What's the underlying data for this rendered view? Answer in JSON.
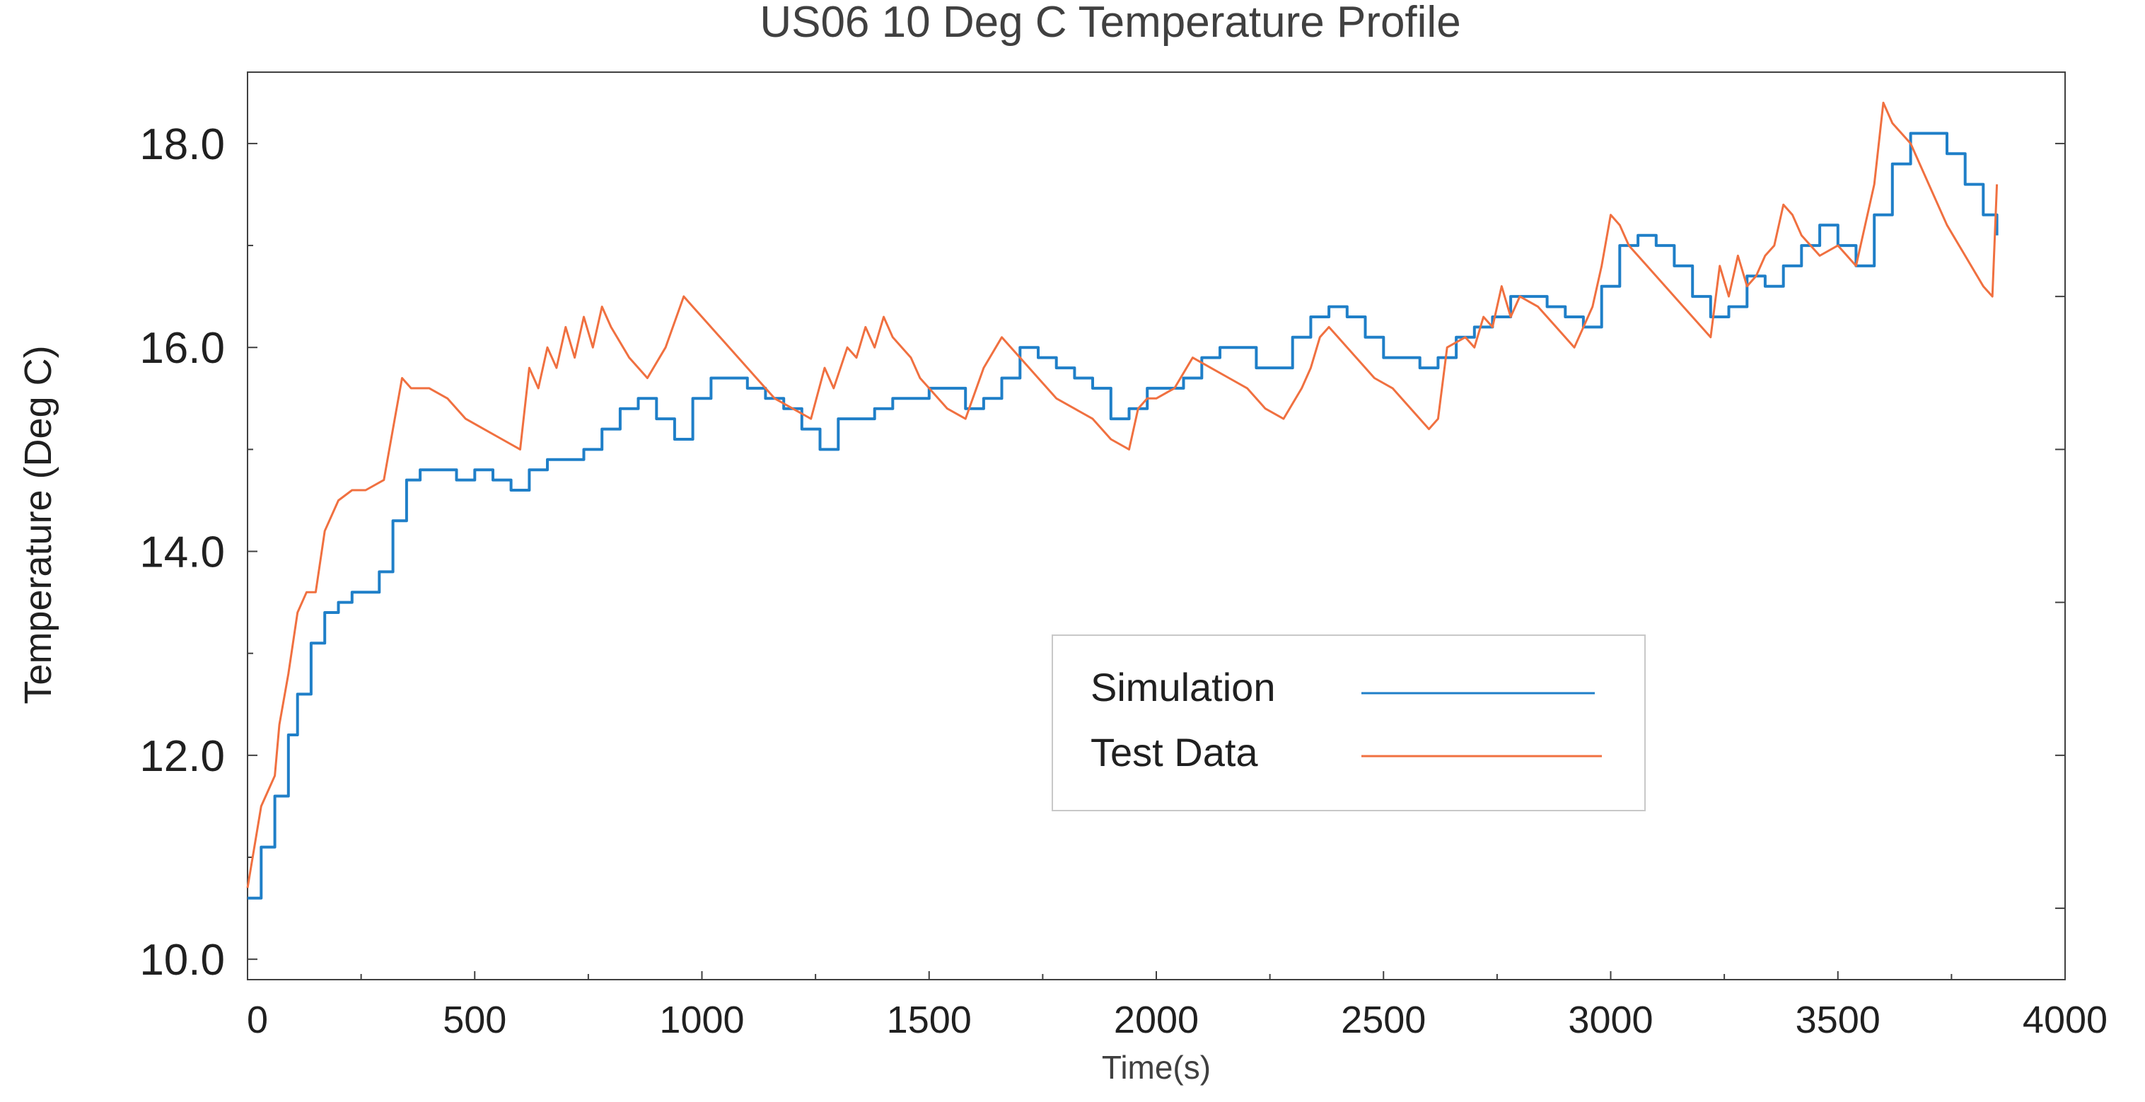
{
  "chart_data": {
    "type": "line",
    "title": "US06  10 Deg C Temperature Profile",
    "xlabel": "Time(s)",
    "ylabel": "Temperature  (Deg C)",
    "xlim": [
      0,
      4000
    ],
    "ylim": [
      9.8,
      18.7
    ],
    "x_ticks": [
      0,
      500,
      1000,
      1500,
      2000,
      2500,
      3000,
      3500,
      4000
    ],
    "x_tick_labels": [
      "0",
      "500",
      "1000",
      "1500",
      "2000",
      "2500",
      "3000",
      "3500",
      "4000"
    ],
    "y_ticks": [
      10,
      12,
      14,
      16,
      18
    ],
    "y_tick_labels": [
      "10.0",
      "12.0",
      "14.0",
      "16.0",
      "18.0"
    ],
    "grid": false,
    "legend_position": "center-right",
    "series": [
      {
        "name": "Simulation",
        "color": "#1f7fc8",
        "x": [
          0,
          30,
          60,
          90,
          110,
          140,
          170,
          200,
          230,
          260,
          290,
          320,
          350,
          380,
          420,
          460,
          500,
          540,
          580,
          620,
          660,
          700,
          740,
          780,
          820,
          860,
          900,
          940,
          980,
          1020,
          1060,
          1100,
          1140,
          1180,
          1220,
          1260,
          1300,
          1340,
          1380,
          1420,
          1460,
          1500,
          1540,
          1580,
          1620,
          1660,
          1700,
          1740,
          1780,
          1820,
          1860,
          1900,
          1940,
          1980,
          2020,
          2060,
          2100,
          2140,
          2180,
          2220,
          2260,
          2300,
          2340,
          2380,
          2420,
          2460,
          2500,
          2540,
          2580,
          2620,
          2660,
          2700,
          2740,
          2780,
          2820,
          2860,
          2900,
          2940,
          2980,
          3020,
          3060,
          3100,
          3140,
          3180,
          3220,
          3260,
          3300,
          3340,
          3380,
          3420,
          3460,
          3500,
          3540,
          3580,
          3620,
          3660,
          3700,
          3740,
          3780,
          3820,
          3850
        ],
        "values": [
          10.6,
          11.1,
          11.6,
          12.2,
          12.6,
          13.1,
          13.4,
          13.5,
          13.6,
          13.6,
          13.8,
          14.3,
          14.7,
          14.8,
          14.8,
          14.7,
          14.8,
          14.7,
          14.6,
          14.8,
          14.9,
          14.9,
          15.0,
          15.2,
          15.4,
          15.5,
          15.3,
          15.1,
          15.5,
          15.7,
          15.7,
          15.6,
          15.5,
          15.4,
          15.2,
          15.0,
          15.3,
          15.3,
          15.4,
          15.5,
          15.5,
          15.6,
          15.6,
          15.4,
          15.5,
          15.7,
          16.0,
          15.9,
          15.8,
          15.7,
          15.6,
          15.3,
          15.4,
          15.6,
          15.6,
          15.7,
          15.9,
          16.0,
          16.0,
          15.8,
          15.8,
          16.1,
          16.3,
          16.4,
          16.3,
          16.1,
          15.9,
          15.9,
          15.8,
          15.9,
          16.1,
          16.2,
          16.3,
          16.5,
          16.5,
          16.4,
          16.3,
          16.2,
          16.6,
          17.0,
          17.1,
          17.0,
          16.8,
          16.5,
          16.3,
          16.4,
          16.7,
          16.6,
          16.8,
          17.0,
          17.2,
          17.0,
          16.8,
          17.3,
          17.8,
          18.1,
          18.1,
          17.9,
          17.6,
          17.3,
          17.1
        ]
      },
      {
        "name": "Test Data",
        "color": "#f07040",
        "x": [
          0,
          30,
          60,
          70,
          90,
          110,
          130,
          150,
          170,
          200,
          230,
          260,
          300,
          320,
          340,
          360,
          400,
          440,
          480,
          520,
          560,
          600,
          620,
          640,
          660,
          680,
          700,
          720,
          740,
          760,
          780,
          800,
          840,
          880,
          920,
          960,
          980,
          1000,
          1040,
          1080,
          1120,
          1160,
          1200,
          1240,
          1270,
          1290,
          1320,
          1340,
          1360,
          1380,
          1400,
          1420,
          1440,
          1460,
          1480,
          1500,
          1540,
          1580,
          1620,
          1660,
          1680,
          1700,
          1740,
          1780,
          1820,
          1860,
          1900,
          1940,
          1960,
          1980,
          2000,
          2040,
          2080,
          2120,
          2160,
          2200,
          2240,
          2280,
          2320,
          2340,
          2360,
          2380,
          2400,
          2440,
          2480,
          2520,
          2560,
          2600,
          2620,
          2640,
          2680,
          2700,
          2720,
          2740,
          2760,
          2780,
          2800,
          2840,
          2880,
          2920,
          2960,
          2980,
          3000,
          3020,
          3040,
          3080,
          3120,
          3160,
          3200,
          3220,
          3240,
          3260,
          3280,
          3300,
          3320,
          3340,
          3360,
          3380,
          3400,
          3420,
          3460,
          3500,
          3540,
          3560,
          3580,
          3600,
          3620,
          3660,
          3700,
          3740,
          3780,
          3820,
          3840,
          3850
        ],
        "values": [
          10.7,
          11.5,
          11.8,
          12.3,
          12.8,
          13.4,
          13.6,
          13.6,
          14.2,
          14.5,
          14.6,
          14.6,
          14.7,
          15.2,
          15.7,
          15.6,
          15.6,
          15.5,
          15.3,
          15.2,
          15.1,
          15.0,
          15.8,
          15.6,
          16.0,
          15.8,
          16.2,
          15.9,
          16.3,
          16.0,
          16.4,
          16.2,
          15.9,
          15.7,
          16.0,
          16.5,
          16.4,
          16.3,
          16.1,
          15.9,
          15.7,
          15.5,
          15.4,
          15.3,
          15.8,
          15.6,
          16.0,
          15.9,
          16.2,
          16.0,
          16.3,
          16.1,
          16.0,
          15.9,
          15.7,
          15.6,
          15.4,
          15.3,
          15.8,
          16.1,
          16.0,
          15.9,
          15.7,
          15.5,
          15.4,
          15.3,
          15.1,
          15.0,
          15.4,
          15.5,
          15.5,
          15.6,
          15.9,
          15.8,
          15.7,
          15.6,
          15.4,
          15.3,
          15.6,
          15.8,
          16.1,
          16.2,
          16.1,
          15.9,
          15.7,
          15.6,
          15.4,
          15.2,
          15.3,
          16.0,
          16.1,
          16.0,
          16.3,
          16.2,
          16.6,
          16.3,
          16.5,
          16.4,
          16.2,
          16.0,
          16.4,
          16.8,
          17.3,
          17.2,
          17.0,
          16.8,
          16.6,
          16.4,
          16.2,
          16.1,
          16.8,
          16.5,
          16.9,
          16.6,
          16.7,
          16.9,
          17.0,
          17.4,
          17.3,
          17.1,
          16.9,
          17.0,
          16.8,
          17.2,
          17.6,
          18.4,
          18.2,
          18.0,
          17.6,
          17.2,
          16.9,
          16.6,
          16.5,
          17.6
        ]
      }
    ]
  }
}
